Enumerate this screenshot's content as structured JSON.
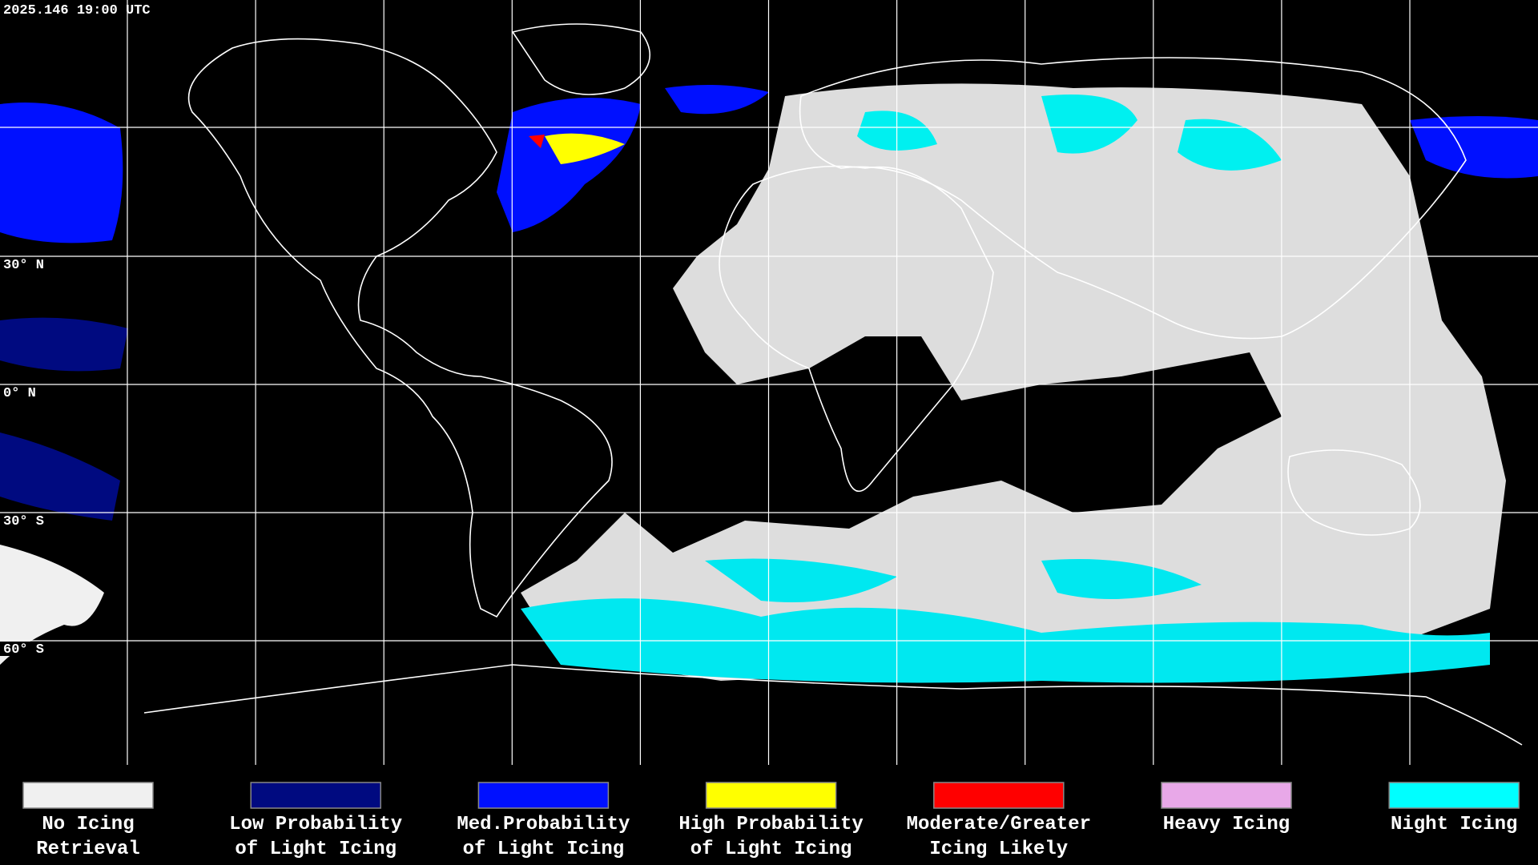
{
  "header": {
    "timestamp": "2025.146 19:00 UTC"
  },
  "latitude_labels": [
    "30° N",
    "0° N",
    "30° S",
    "60° S"
  ],
  "legend": {
    "items": [
      {
        "label": [
          "No Icing",
          "Retrieval"
        ],
        "color": "#f0f0f0"
      },
      {
        "label": [
          "Low Probability",
          "of Light Icing"
        ],
        "color": "#000a80"
      },
      {
        "label": [
          "Med.Probability",
          "of Light Icing"
        ],
        "color": "#0010ff"
      },
      {
        "label": [
          "High Probability",
          "of Light Icing"
        ],
        "color": "#ffff00"
      },
      {
        "label": [
          "Moderate/Greater",
          "Icing Likely"
        ],
        "color": "#ff0000"
      },
      {
        "label": [
          "Heavy Icing"
        ],
        "color": "#e8a8e8"
      },
      {
        "label": [
          "Night Icing"
        ],
        "color": "#00ffff"
      }
    ]
  }
}
